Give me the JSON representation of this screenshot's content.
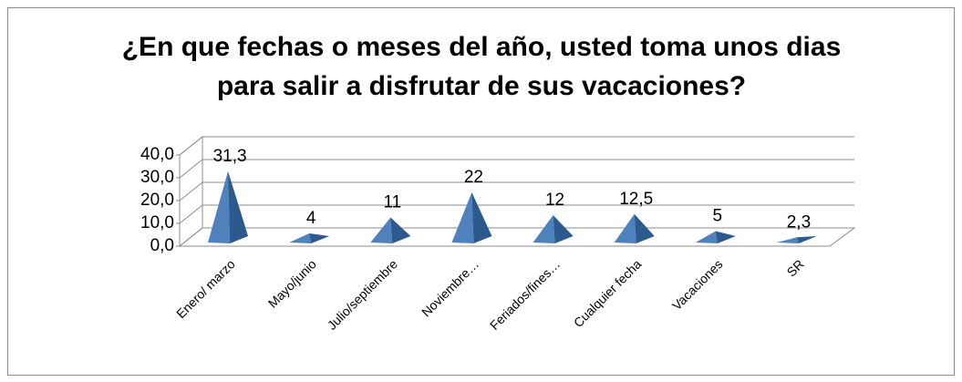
{
  "chart_data": {
    "type": "pyramid3d",
    "title": "¿En que fechas o meses del año, usted toma unos dias para salir a disfrutar de sus vacaciones?",
    "categories": [
      "Enero/ marzo",
      "Mayo/junio",
      "Julio/septiembre",
      "Noviembre…",
      "Feriados/fines…",
      "Cualquier fecha",
      "Vacaciones",
      "SR"
    ],
    "values": [
      31.3,
      4,
      11,
      22,
      12,
      12.5,
      5,
      2.3
    ],
    "value_labels": [
      "31,3",
      "4",
      "11",
      "22",
      "12",
      "12,5",
      "5",
      "2,3"
    ],
    "color": "#4f81bd",
    "ylim": [
      0,
      40
    ],
    "yticks": [
      {
        "value": 0,
        "label": "0,0"
      },
      {
        "value": 10,
        "label": "10,0"
      },
      {
        "value": 20,
        "label": "20,0"
      },
      {
        "value": 30,
        "label": "30,0"
      },
      {
        "value": 40,
        "label": "40,0"
      }
    ],
    "grid": true
  }
}
